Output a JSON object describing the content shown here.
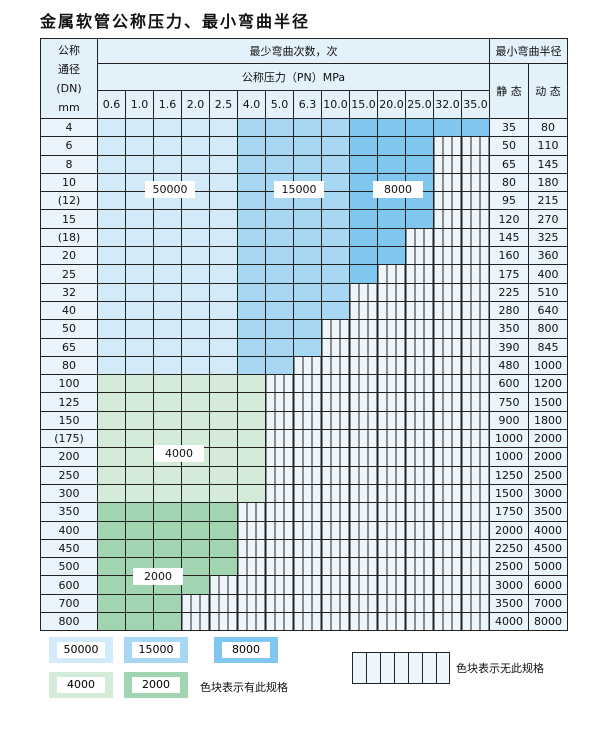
{
  "title": "金属软管公称压力、最小弯曲半径",
  "header": {
    "dn_label_lines": [
      "公称",
      "通径",
      "(DN)",
      "mm"
    ],
    "cycles_label": "最少弯曲次数，次",
    "pressure_label": "公称压力（PN）MPa",
    "radius_label": "最小弯曲半径",
    "static_label": "静 态",
    "dynamic_label": "动 态",
    "pressures": [
      "0.6",
      "1.0",
      "1.6",
      "2.0",
      "2.5",
      "4.0",
      "5.0",
      "6.3",
      "10.0",
      "15.0",
      "20.0",
      "25.0",
      "32.0",
      "35.0"
    ]
  },
  "spec_key": {
    "A": "50000",
    "B": "15000",
    "C": "8000",
    "D": "4000",
    "E": "2000",
    "-": "none"
  },
  "colors": {
    "A": "#d3eaf8",
    "B": "#a8d7f3",
    "C": "#7fc7ee",
    "D": "#d4ebd9",
    "E": "#a1d4b0",
    "none": "#eef5fb"
  },
  "rows": [
    {
      "dn": "4",
      "static": "35",
      "dynamic": "80",
      "spec": "AAAAABBBBCCCCC"
    },
    {
      "dn": "6",
      "static": "50",
      "dynamic": "110",
      "spec": "AAAAABBBBCCC--"
    },
    {
      "dn": "8",
      "static": "65",
      "dynamic": "145",
      "spec": "AAAAABBBBCCC--"
    },
    {
      "dn": "10",
      "static": "80",
      "dynamic": "180",
      "spec": "AAAAABBBBCCC--"
    },
    {
      "dn": "(12)",
      "static": "95",
      "dynamic": "215",
      "spec": "AAAAABBBBCCC--"
    },
    {
      "dn": "15",
      "static": "120",
      "dynamic": "270",
      "spec": "AAAAABBBBCCC--"
    },
    {
      "dn": "(18)",
      "static": "145",
      "dynamic": "325",
      "spec": "AAAAABBBBCC---"
    },
    {
      "dn": "20",
      "static": "160",
      "dynamic": "360",
      "spec": "AAAAABBBBCC---"
    },
    {
      "dn": "25",
      "static": "175",
      "dynamic": "400",
      "spec": "AAAAABBBBC----"
    },
    {
      "dn": "32",
      "static": "225",
      "dynamic": "510",
      "spec": "AAAAABBBB-----"
    },
    {
      "dn": "40",
      "static": "280",
      "dynamic": "640",
      "spec": "AAAAABBBB-----"
    },
    {
      "dn": "50",
      "static": "350",
      "dynamic": "800",
      "spec": "AAAAABBB------"
    },
    {
      "dn": "65",
      "static": "390",
      "dynamic": "845",
      "spec": "AAAAABBB------"
    },
    {
      "dn": "80",
      "static": "480",
      "dynamic": "1000",
      "spec": "AAAAABB-------"
    },
    {
      "dn": "100",
      "static": "600",
      "dynamic": "1200",
      "spec": "DDDDDD--------"
    },
    {
      "dn": "125",
      "static": "750",
      "dynamic": "1500",
      "spec": "DDDDDD--------"
    },
    {
      "dn": "150",
      "static": "900",
      "dynamic": "1800",
      "spec": "DDDDDD--------"
    },
    {
      "dn": "(175)",
      "static": "1000",
      "dynamic": "2000",
      "spec": "DDDDDD--------"
    },
    {
      "dn": "200",
      "static": "1000",
      "dynamic": "2000",
      "spec": "DDDDDD--------"
    },
    {
      "dn": "250",
      "static": "1250",
      "dynamic": "2500",
      "spec": "DDDDDD--------"
    },
    {
      "dn": "300",
      "static": "1500",
      "dynamic": "3000",
      "spec": "DDDDDD--------"
    },
    {
      "dn": "350",
      "static": "1750",
      "dynamic": "3500",
      "spec": "EEEEE---------"
    },
    {
      "dn": "400",
      "static": "2000",
      "dynamic": "4000",
      "spec": "EEEEE---------"
    },
    {
      "dn": "450",
      "static": "2250",
      "dynamic": "4500",
      "spec": "EEEEE---------"
    },
    {
      "dn": "500",
      "static": "2500",
      "dynamic": "5000",
      "spec": "EEEEE---------"
    },
    {
      "dn": "600",
      "static": "3000",
      "dynamic": "6000",
      "spec": "EEEE----------"
    },
    {
      "dn": "700",
      "static": "3500",
      "dynamic": "7000",
      "spec": "EEE-----------"
    },
    {
      "dn": "800",
      "static": "4000",
      "dynamic": "8000",
      "spec": "EEE-----------"
    }
  ],
  "zone_labels": {
    "A": "50000",
    "B": "15000",
    "C": "8000",
    "D": "4000",
    "E": "2000"
  },
  "legend": {
    "items": [
      {
        "label": "50000",
        "color": "#d3eaf8"
      },
      {
        "label": "15000",
        "color": "#a8d7f3"
      },
      {
        "label": "8000",
        "color": "#7fc7ee"
      },
      {
        "label": "4000",
        "color": "#d4ebd9"
      },
      {
        "label": "2000",
        "color": "#a1d4b0"
      }
    ],
    "has_spec_text": "色块表示有此规格",
    "no_spec_text": "色块表示无此规格"
  }
}
